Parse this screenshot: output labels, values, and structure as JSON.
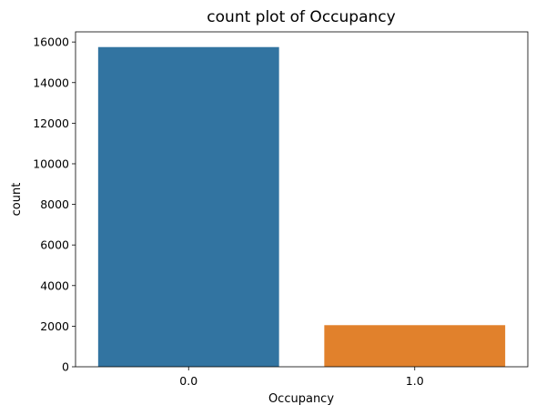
{
  "chart_data": {
    "type": "bar",
    "title": "count plot of Occupancy",
    "xlabel": "Occupancy",
    "ylabel": "count",
    "categories": [
      "0.0",
      "1.0"
    ],
    "values": [
      15750,
      2050
    ],
    "colors": [
      "#3274a1",
      "#e1812c"
    ],
    "ylim": [
      0,
      16500
    ],
    "yticks": [
      0,
      2000,
      4000,
      6000,
      8000,
      10000,
      12000,
      14000,
      16000
    ],
    "grid": false,
    "legend": "none"
  }
}
